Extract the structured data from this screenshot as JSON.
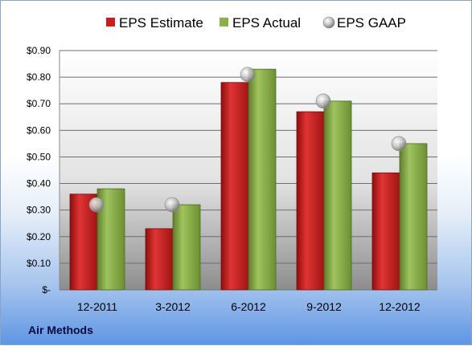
{
  "chart_data": {
    "type": "bar",
    "categories": [
      "12-2011",
      "3-2012",
      "6-2012",
      "9-2012",
      "12-2012"
    ],
    "series": [
      {
        "name": "EPS Estimate",
        "values": [
          0.36,
          0.23,
          0.78,
          0.67,
          0.44
        ],
        "color": "#c81e1e"
      },
      {
        "name": "EPS Actual",
        "values": [
          0.38,
          0.32,
          0.83,
          0.71,
          0.55
        ],
        "color": "#8cb04a"
      }
    ],
    "scatter_series": {
      "name": "EPS GAAP",
      "values": [
        0.32,
        0.32,
        0.81,
        0.71,
        0.55
      ],
      "color": "#b8b8b8"
    },
    "y_ticks": [
      "$-",
      "$0.10",
      "$0.20",
      "$0.30",
      "$0.40",
      "$0.50",
      "$0.60",
      "$0.70",
      "$0.80",
      "$0.90"
    ],
    "ylim": [
      0,
      0.9
    ],
    "grid": true,
    "legend_position": "top",
    "footer_label": "Air Methods"
  }
}
